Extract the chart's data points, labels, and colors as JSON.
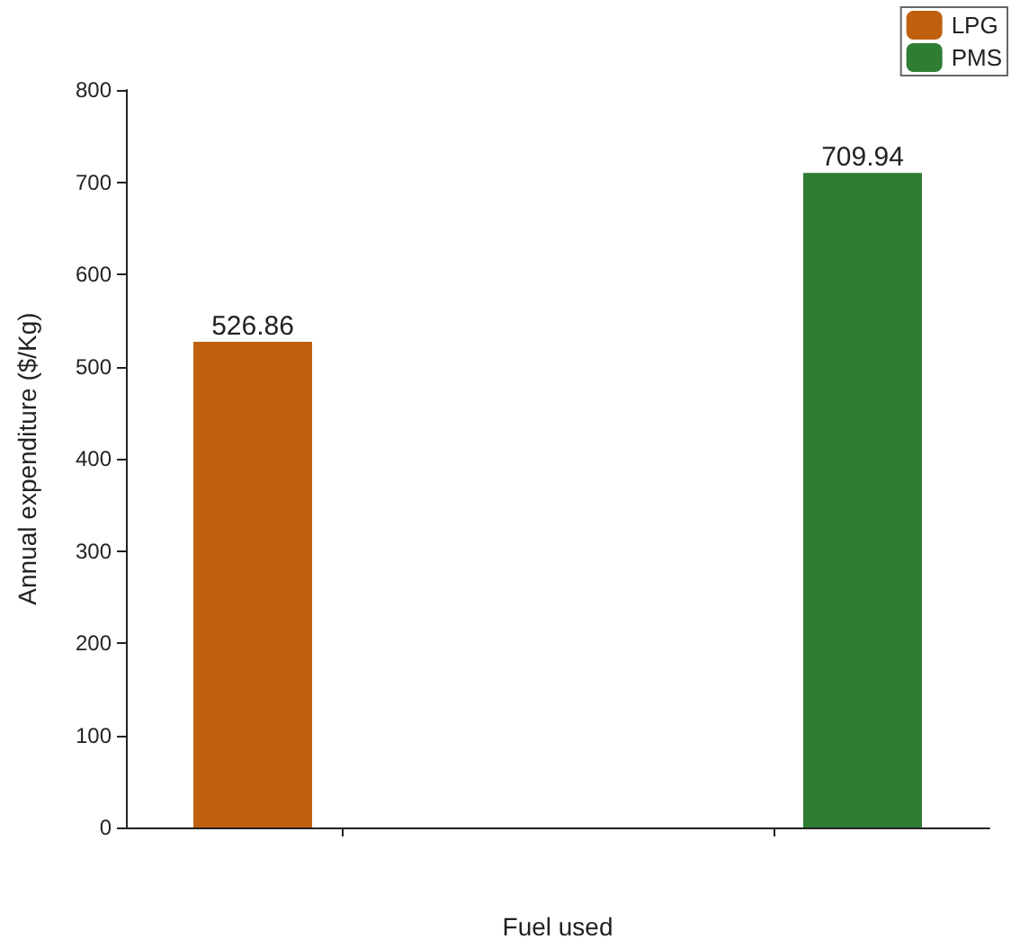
{
  "chart_data": {
    "type": "bar",
    "xlabel": "Fuel used",
    "ylabel": "Annual expenditure ($/Kg)",
    "categories": [
      null,
      null
    ],
    "series": [
      {
        "name": "LPG",
        "color": "#c0600f",
        "values": [
          526.86,
          null
        ]
      },
      {
        "name": "PMS",
        "color": "#2e7d32",
        "values": [
          null,
          709.94
        ]
      }
    ],
    "ylim": [
      0,
      800
    ],
    "yticks": [
      0,
      100,
      200,
      300,
      400,
      500,
      600,
      700,
      800
    ],
    "grid": false,
    "legend": "top right",
    "data_labels": true
  }
}
